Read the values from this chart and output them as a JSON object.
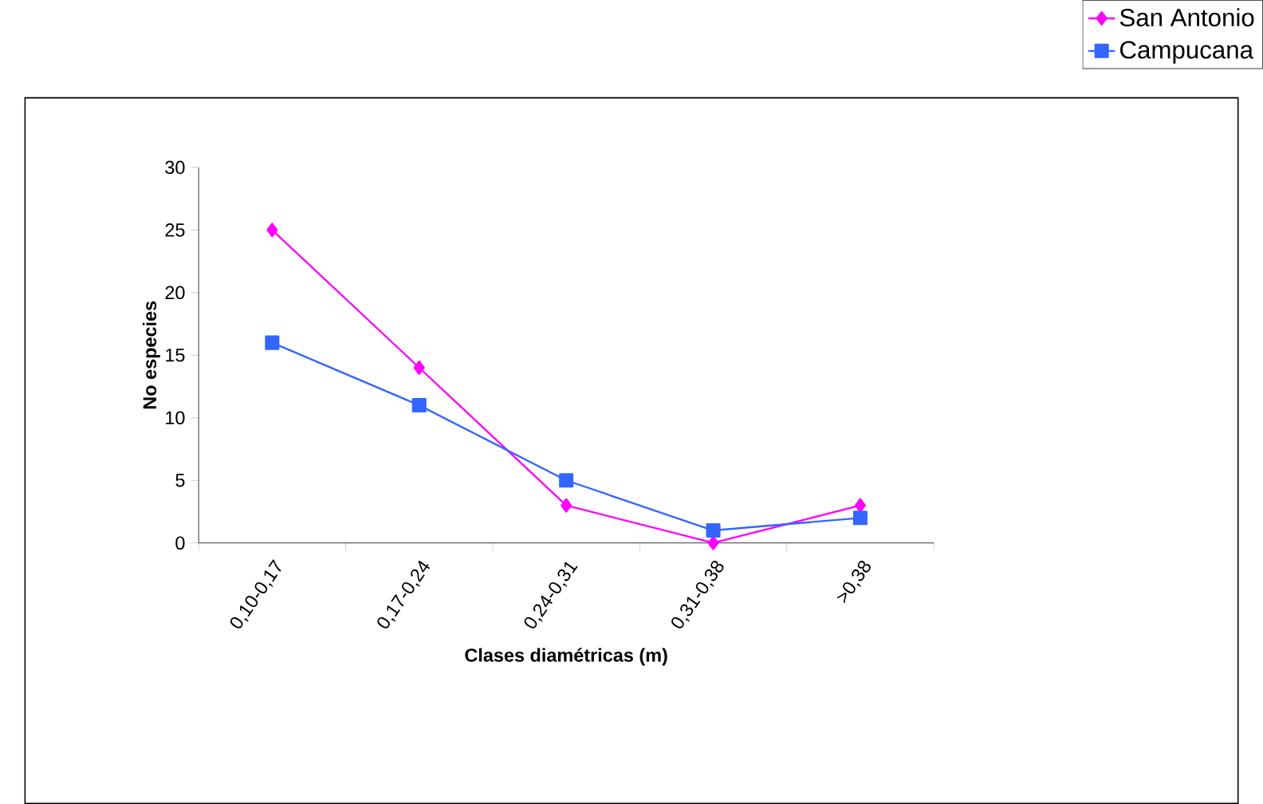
{
  "chart_data": {
    "type": "line",
    "xlabel": "Clases diamétricas (m)",
    "ylabel": "No especies",
    "categories": [
      "0,10-0,17",
      "0,17-0,24",
      "0,24-0,31",
      "0,31-0,38",
      ">0,38"
    ],
    "series": [
      {
        "name": "San Antonio",
        "color": "#ff00ff",
        "marker": "diamond",
        "values": [
          25,
          14,
          3,
          0,
          3
        ]
      },
      {
        "name": "Campucana",
        "color": "#3366ff",
        "marker": "square",
        "values": [
          16,
          11,
          5,
          1,
          2
        ]
      }
    ],
    "ylim": [
      0,
      30
    ],
    "yticks": [
      0,
      5,
      10,
      15,
      20,
      25,
      30
    ],
    "legend": "right",
    "grid": false,
    "line_style": "solid"
  }
}
